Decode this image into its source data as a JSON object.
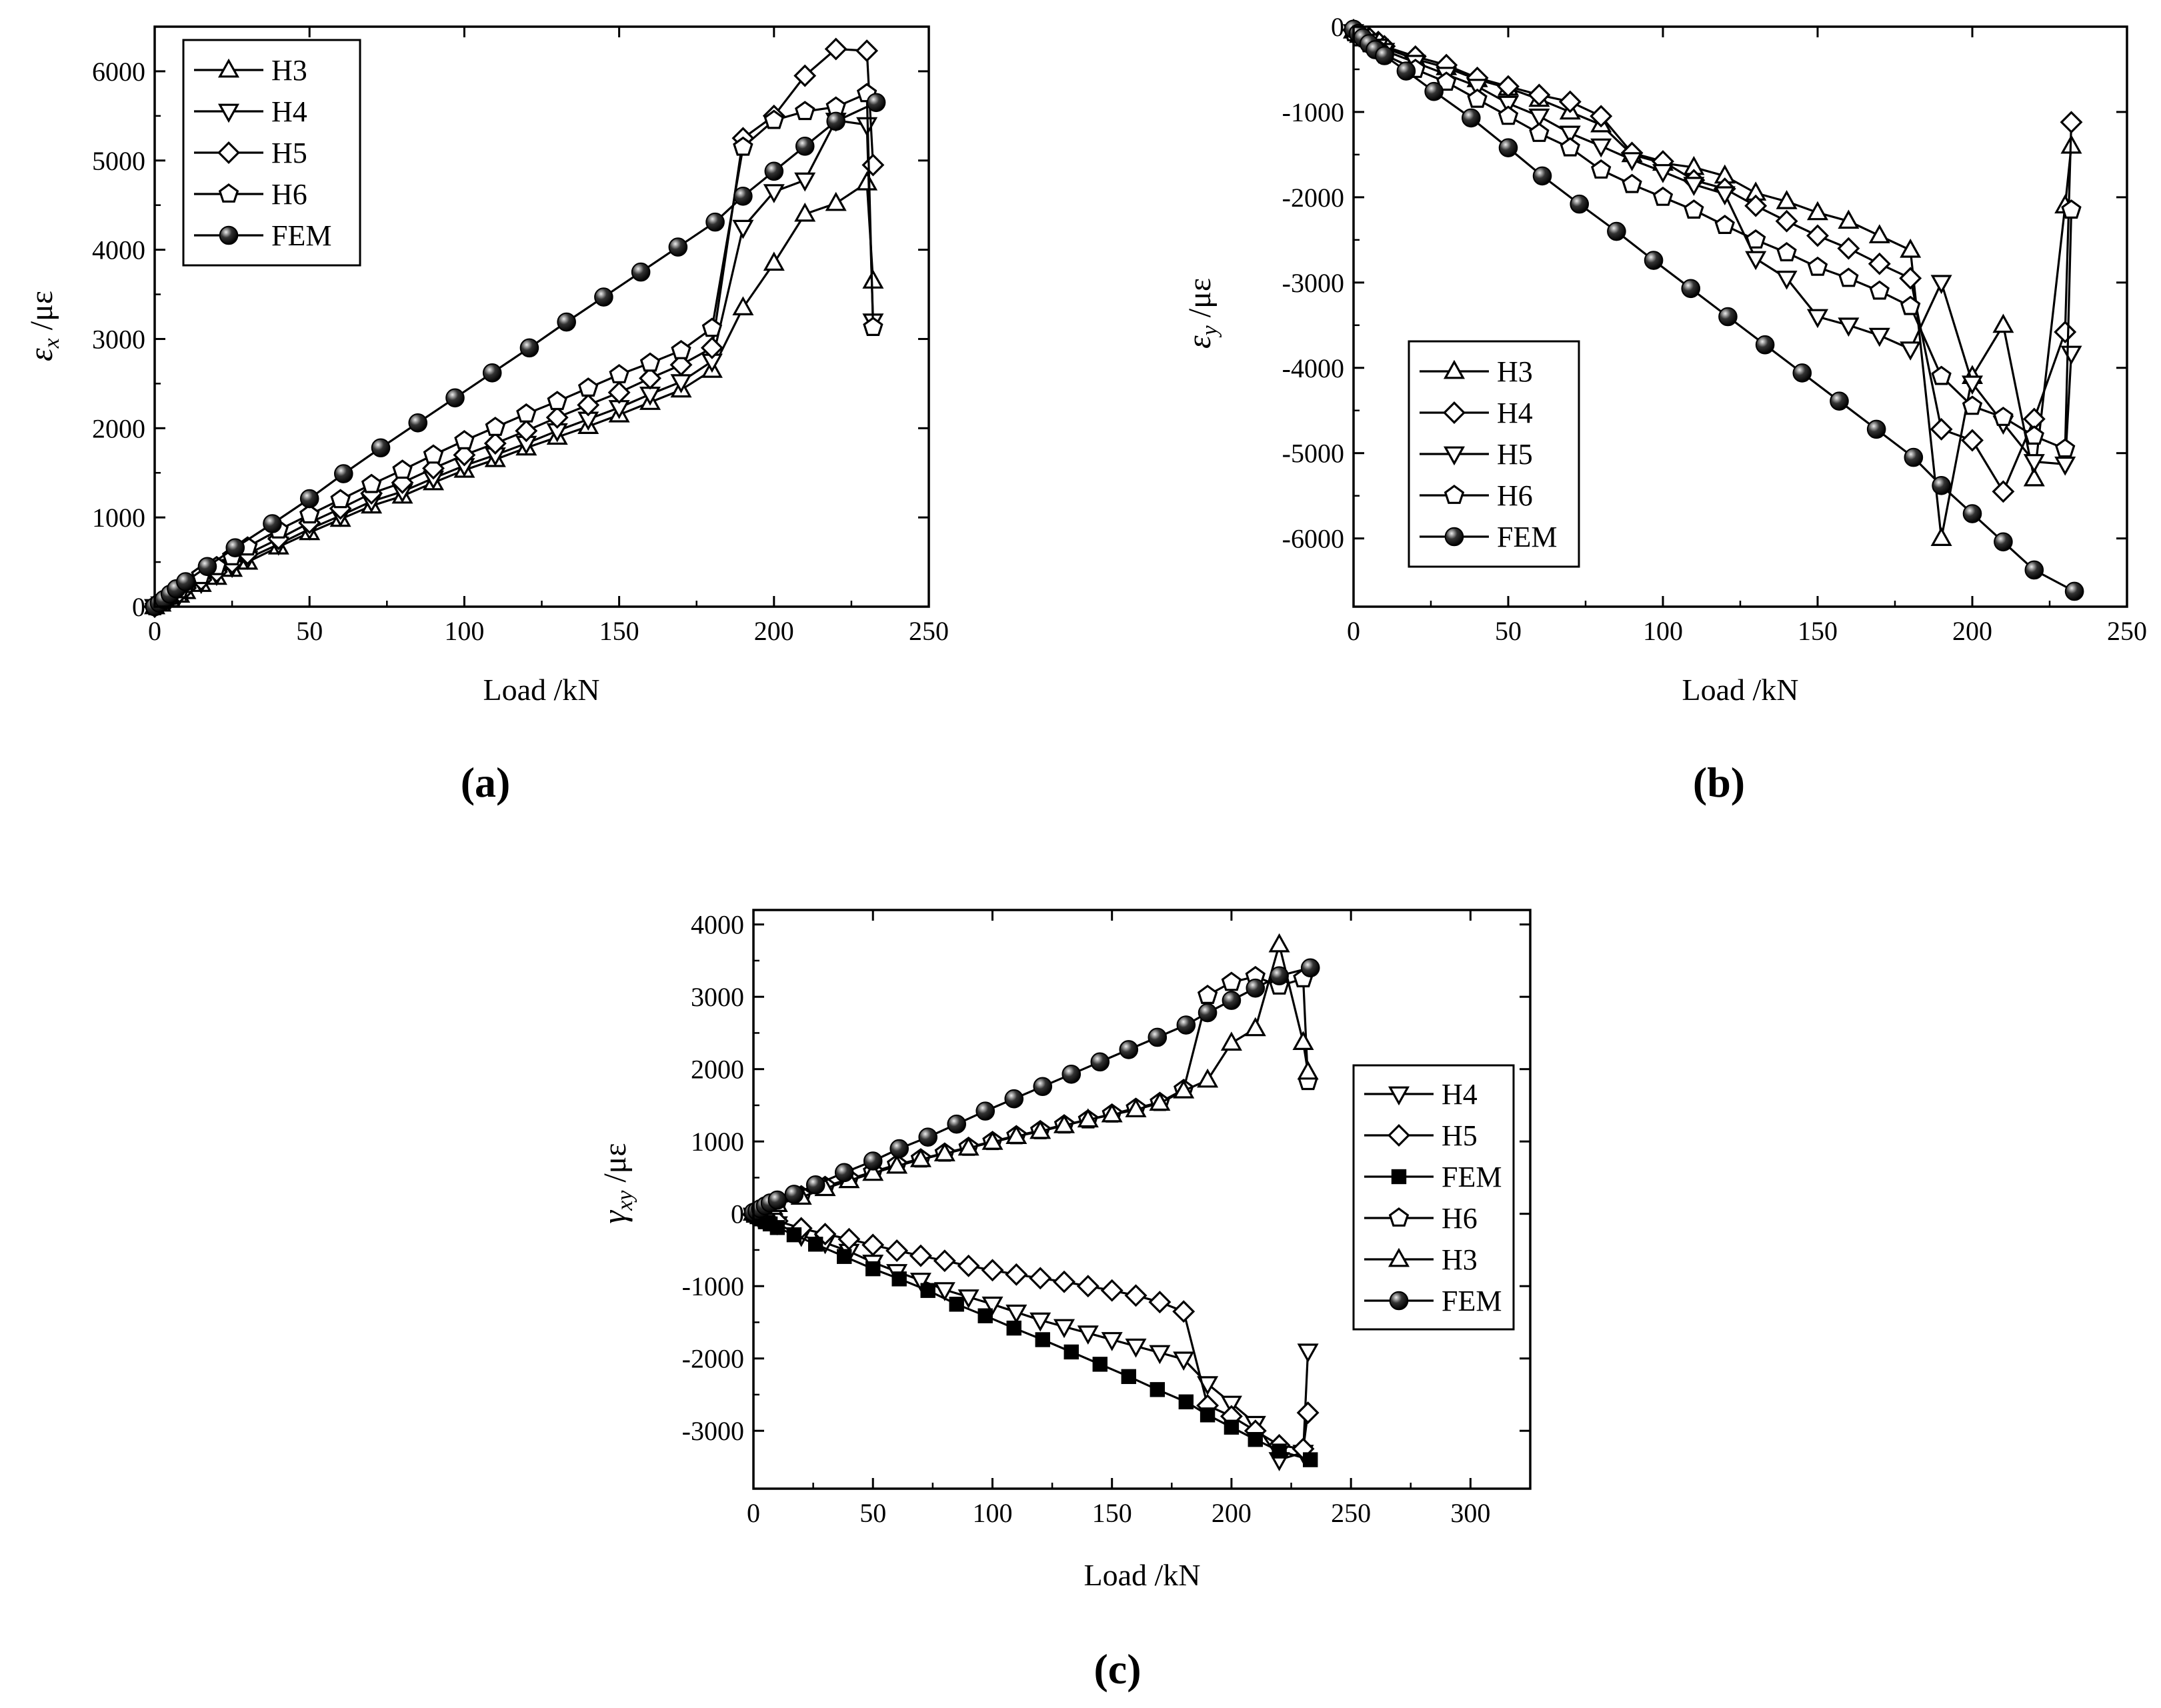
{
  "chart_data": [
    {
      "id": "a",
      "type": "line",
      "panel_label": "(a)",
      "xlabel": "Load /kN",
      "ylabel": "εx /με",
      "ylabel_main": "ε",
      "ylabel_sub": "x",
      "ylabel_unit": " /με",
      "xlim": [
        0,
        250
      ],
      "ylim": [
        0,
        6500
      ],
      "xticks": [
        0,
        50,
        100,
        150,
        200,
        250
      ],
      "yticks": [
        0,
        1000,
        2000,
        3000,
        4000,
        5000,
        6000
      ],
      "legend_position": "top-left",
      "series": [
        {
          "name": "H3",
          "marker": "triangle-up",
          "x": [
            0,
            2,
            5,
            8,
            10,
            15,
            20,
            25,
            30,
            40,
            50,
            60,
            70,
            80,
            90,
            100,
            110,
            120,
            130,
            140,
            150,
            160,
            170,
            180,
            190,
            200,
            210,
            220,
            230,
            232
          ],
          "y": [
            0,
            30,
            80,
            130,
            170,
            250,
            330,
            420,
            500,
            670,
            830,
            980,
            1130,
            1240,
            1390,
            1530,
            1650,
            1780,
            1900,
            2020,
            2150,
            2290,
            2430,
            2650,
            3350,
            3850,
            4400,
            4520,
            4750,
            3650
          ]
        },
        {
          "name": "H4",
          "marker": "triangle-down",
          "x": [
            0,
            2,
            5,
            8,
            10,
            15,
            20,
            25,
            30,
            40,
            50,
            60,
            70,
            80,
            90,
            100,
            110,
            120,
            130,
            140,
            150,
            160,
            170,
            180,
            190,
            200,
            210,
            220,
            230,
            232
          ],
          "y": [
            0,
            30,
            90,
            140,
            190,
            270,
            360,
            450,
            540,
            700,
            870,
            1020,
            1180,
            1290,
            1440,
            1580,
            1700,
            1830,
            1970,
            2100,
            2230,
            2380,
            2520,
            2750,
            4250,
            4650,
            4780,
            5450,
            5400,
            3200
          ]
        },
        {
          "name": "H5",
          "marker": "diamond",
          "x": [
            0,
            2,
            5,
            8,
            10,
            15,
            20,
            25,
            30,
            40,
            50,
            60,
            70,
            80,
            90,
            100,
            110,
            120,
            130,
            140,
            150,
            160,
            170,
            180,
            190,
            200,
            210,
            220,
            230,
            232
          ],
          "y": [
            0,
            40,
            100,
            160,
            210,
            300,
            390,
            490,
            590,
            760,
            940,
            1100,
            1270,
            1390,
            1550,
            1700,
            1830,
            1970,
            2120,
            2260,
            2400,
            2560,
            2710,
            2900,
            5250,
            5500,
            5950,
            6250,
            6230,
            4950
          ]
        },
        {
          "name": "H6",
          "marker": "pentagon",
          "x": [
            0,
            2,
            5,
            8,
            10,
            15,
            20,
            25,
            30,
            40,
            50,
            60,
            70,
            80,
            90,
            100,
            110,
            120,
            130,
            140,
            150,
            160,
            170,
            180,
            190,
            200,
            210,
            220,
            230,
            232
          ],
          "y": [
            0,
            50,
            120,
            190,
            250,
            350,
            450,
            560,
            670,
            860,
            1030,
            1200,
            1370,
            1530,
            1700,
            1860,
            2010,
            2160,
            2300,
            2450,
            2600,
            2730,
            2870,
            3120,
            5150,
            5450,
            5550,
            5600,
            5750,
            3130
          ]
        },
        {
          "name": "FEM",
          "marker": "ball",
          "x": [
            0,
            1.5,
            3,
            5,
            7,
            10,
            17,
            26,
            38,
            50,
            61,
            73,
            85,
            97,
            109,
            121,
            133,
            145,
            157,
            169,
            181,
            190,
            200,
            210,
            220,
            233
          ],
          "y": [
            0,
            40,
            80,
            140,
            200,
            280,
            450,
            660,
            930,
            1210,
            1490,
            1780,
            2060,
            2340,
            2620,
            2900,
            3190,
            3470,
            3750,
            4030,
            4310,
            4600,
            4880,
            5160,
            5440,
            5650
          ]
        }
      ]
    },
    {
      "id": "b",
      "type": "line",
      "panel_label": "(b)",
      "xlabel": "Load /kN",
      "ylabel": "εy /με",
      "ylabel_main": "ε",
      "ylabel_sub": "y",
      "ylabel_unit": " /με",
      "xlim": [
        0,
        250
      ],
      "ylim": [
        -6800,
        0
      ],
      "xticks": [
        0,
        50,
        100,
        150,
        200,
        250
      ],
      "yticks": [
        0,
        -1000,
        -2000,
        -3000,
        -4000,
        -5000,
        -6000
      ],
      "legend_position": "bottom-left",
      "series": [
        {
          "name": "H3",
          "marker": "triangle-up",
          "x": [
            0,
            2,
            5,
            8,
            10,
            20,
            30,
            40,
            50,
            60,
            70,
            80,
            90,
            100,
            110,
            120,
            130,
            140,
            150,
            160,
            170,
            180,
            190,
            200,
            210,
            220,
            230,
            232
          ],
          "y": [
            -50,
            -100,
            -150,
            -200,
            -250,
            -380,
            -480,
            -620,
            -720,
            -850,
            -1000,
            -1150,
            -1500,
            -1600,
            -1650,
            -1750,
            -1950,
            -2050,
            -2180,
            -2280,
            -2450,
            -2620,
            -6000,
            -4100,
            -3500,
            -5300,
            -2100,
            -1400
          ]
        },
        {
          "name": "H4",
          "marker": "diamond",
          "x": [
            0,
            2,
            5,
            8,
            10,
            20,
            30,
            40,
            50,
            60,
            70,
            80,
            90,
            100,
            110,
            120,
            130,
            140,
            150,
            160,
            170,
            180,
            190,
            200,
            210,
            220,
            230,
            232
          ],
          "y": [
            -40,
            -80,
            -130,
            -180,
            -230,
            -350,
            -450,
            -600,
            -700,
            -800,
            -880,
            -1050,
            -1480,
            -1580,
            -1800,
            -1900,
            -2100,
            -2280,
            -2450,
            -2600,
            -2780,
            -2950,
            -4720,
            -4850,
            -5450,
            -4600,
            -3580,
            -1120
          ]
        },
        {
          "name": "H5",
          "marker": "triangle-down",
          "x": [
            0,
            2,
            5,
            8,
            10,
            20,
            30,
            40,
            50,
            60,
            70,
            80,
            90,
            100,
            110,
            120,
            130,
            140,
            150,
            160,
            170,
            180,
            190,
            200,
            210,
            220,
            230,
            232
          ],
          "y": [
            -60,
            -110,
            -170,
            -230,
            -280,
            -420,
            -560,
            -700,
            -900,
            -1050,
            -1250,
            -1400,
            -1560,
            -1700,
            -1850,
            -1960,
            -2720,
            -2950,
            -3400,
            -3500,
            -3620,
            -3780,
            -3000,
            -4180,
            -4650,
            -5100,
            -5130,
            -3830
          ]
        },
        {
          "name": "H6",
          "marker": "pentagon",
          "x": [
            0,
            2,
            5,
            8,
            10,
            20,
            30,
            40,
            50,
            60,
            70,
            80,
            90,
            100,
            110,
            120,
            130,
            140,
            150,
            160,
            170,
            180,
            190,
            200,
            210,
            220,
            230,
            232
          ],
          "y": [
            -70,
            -130,
            -200,
            -270,
            -330,
            -500,
            -650,
            -850,
            -1050,
            -1250,
            -1420,
            -1680,
            -1850,
            -2000,
            -2150,
            -2330,
            -2500,
            -2650,
            -2820,
            -2950,
            -3100,
            -3280,
            -4100,
            -4450,
            -4580,
            -4800,
            -4950,
            -2150
          ]
        },
        {
          "name": "FEM",
          "marker": "ball",
          "x": [
            0,
            1.5,
            3,
            5,
            7,
            10,
            17,
            26,
            38,
            50,
            61,
            73,
            85,
            97,
            109,
            121,
            133,
            145,
            157,
            169,
            181,
            190,
            200,
            210,
            220,
            233
          ],
          "y": [
            -30,
            -80,
            -130,
            -200,
            -270,
            -340,
            -520,
            -760,
            -1070,
            -1420,
            -1750,
            -2080,
            -2400,
            -2740,
            -3070,
            -3400,
            -3730,
            -4060,
            -4390,
            -4720,
            -5050,
            -5380,
            -5710,
            -6040,
            -6370,
            -6620
          ]
        }
      ]
    },
    {
      "id": "c",
      "type": "line",
      "panel_label": "(c)",
      "xlabel": "Load /kN",
      "ylabel": "γxy /με",
      "ylabel_main": "γ",
      "ylabel_sub": "xy",
      "ylabel_unit": " /με",
      "xlim": [
        0,
        325
      ],
      "ylim": [
        -3800,
        4200
      ],
      "xticks": [
        0,
        50,
        100,
        150,
        200,
        250,
        300
      ],
      "yticks": [
        4000,
        3000,
        2000,
        1000,
        0,
        -1000,
        -2000,
        -3000
      ],
      "legend_position": "center-right",
      "series": [
        {
          "name": "H4",
          "marker": "triangle-down",
          "x": [
            0,
            2,
            5,
            8,
            10,
            20,
            30,
            40,
            50,
            60,
            70,
            80,
            90,
            100,
            110,
            120,
            130,
            140,
            150,
            160,
            170,
            180,
            190,
            200,
            210,
            220,
            230,
            232
          ],
          "y": [
            -20,
            -40,
            -70,
            -100,
            -140,
            -300,
            -400,
            -520,
            -670,
            -800,
            -920,
            -1050,
            -1150,
            -1250,
            -1360,
            -1470,
            -1560,
            -1650,
            -1740,
            -1830,
            -1920,
            -2010,
            -2350,
            -2620,
            -2900,
            -3400,
            -3300,
            -1900
          ]
        },
        {
          "name": "H5",
          "marker": "diamond",
          "x": [
            0,
            2,
            5,
            8,
            10,
            20,
            30,
            40,
            50,
            60,
            70,
            80,
            90,
            100,
            110,
            120,
            130,
            140,
            150,
            160,
            170,
            180,
            190,
            200,
            210,
            220,
            230,
            232
          ],
          "y": [
            -10,
            -30,
            -50,
            -80,
            -100,
            -200,
            -280,
            -350,
            -430,
            -510,
            -580,
            -650,
            -720,
            -780,
            -840,
            -890,
            -940,
            -1000,
            -1060,
            -1130,
            -1220,
            -1350,
            -2650,
            -2800,
            -3000,
            -3200,
            -3250,
            -2750
          ]
        },
        {
          "name": "FEM",
          "marker": "square",
          "x": [
            0,
            1.5,
            3,
            5,
            7,
            10,
            17,
            26,
            38,
            50,
            61,
            73,
            85,
            97,
            109,
            121,
            133,
            145,
            157,
            169,
            181,
            190,
            200,
            210,
            220,
            233
          ],
          "y": [
            -20,
            -40,
            -70,
            -110,
            -140,
            -190,
            -290,
            -420,
            -590,
            -760,
            -900,
            -1060,
            -1250,
            -1410,
            -1580,
            -1740,
            -1910,
            -2080,
            -2250,
            -2430,
            -2600,
            -2780,
            -2950,
            -3120,
            -3280,
            -3400
          ]
        },
        {
          "name": "H6",
          "marker": "pentagon",
          "x": [
            0,
            2,
            5,
            8,
            10,
            20,
            30,
            40,
            50,
            60,
            70,
            80,
            90,
            100,
            110,
            120,
            130,
            140,
            150,
            160,
            170,
            180,
            190,
            200,
            210,
            220,
            230,
            232
          ],
          "y": [
            20,
            40,
            70,
            110,
            150,
            250,
            380,
            480,
            580,
            680,
            760,
            840,
            920,
            1000,
            1080,
            1150,
            1230,
            1300,
            1380,
            1460,
            1540,
            1720,
            3020,
            3200,
            3280,
            3150,
            3250,
            1830
          ]
        },
        {
          "name": "H3",
          "marker": "triangle-up",
          "x": [
            0,
            2,
            5,
            8,
            10,
            20,
            30,
            40,
            50,
            60,
            70,
            80,
            90,
            100,
            110,
            120,
            130,
            140,
            150,
            160,
            170,
            180,
            190,
            200,
            210,
            220,
            230,
            232
          ],
          "y": [
            10,
            30,
            60,
            90,
            130,
            230,
            350,
            460,
            560,
            660,
            750,
            830,
            910,
            990,
            1070,
            1140,
            1220,
            1300,
            1370,
            1440,
            1530,
            1700,
            1850,
            2360,
            2560,
            3720,
            2370,
            1960
          ]
        },
        {
          "name": "FEM",
          "marker": "ball",
          "x": [
            0,
            1.5,
            3,
            5,
            7,
            10,
            17,
            26,
            38,
            50,
            61,
            73,
            85,
            97,
            109,
            121,
            133,
            145,
            157,
            169,
            181,
            190,
            200,
            210,
            220,
            233
          ],
          "y": [
            20,
            40,
            70,
            110,
            150,
            190,
            270,
            400,
            570,
            730,
            900,
            1060,
            1240,
            1420,
            1590,
            1760,
            1930,
            2100,
            2270,
            2440,
            2610,
            2780,
            2950,
            3120,
            3290,
            3400
          ]
        }
      ]
    }
  ]
}
